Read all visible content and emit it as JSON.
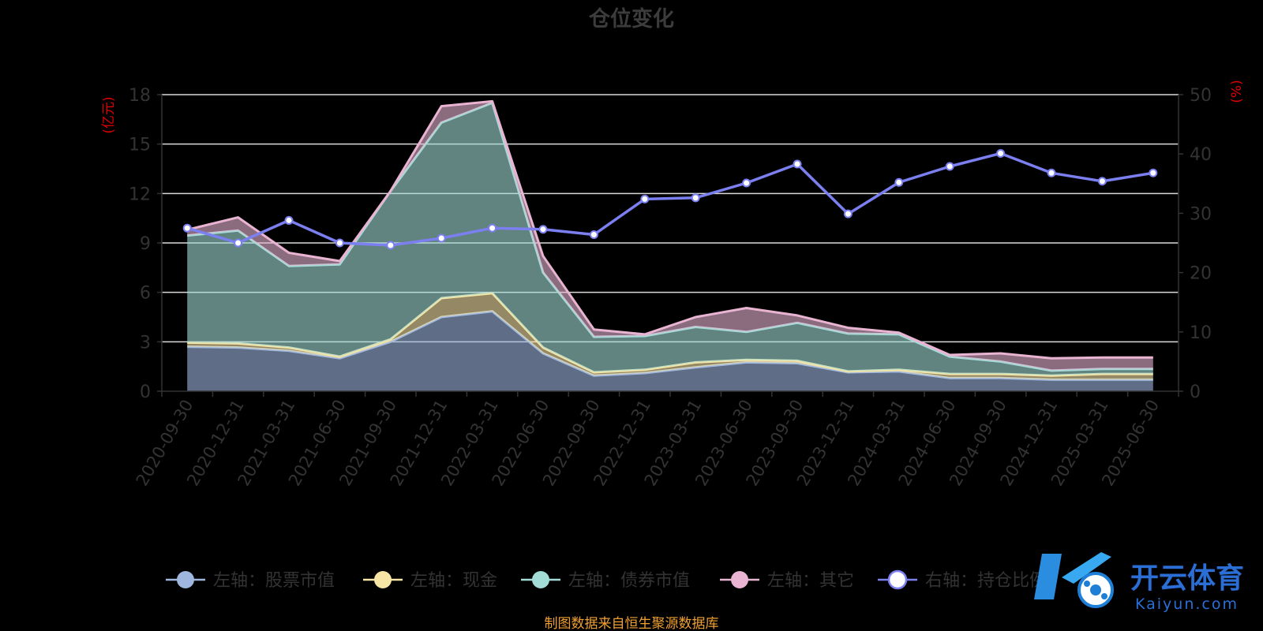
{
  "chart_data": {
    "type": "area",
    "title": "仓位变化",
    "left_unit": "(亿元)",
    "right_unit": "(%)",
    "categories": [
      "2020-09-30",
      "2020-12-31",
      "2021-03-31",
      "2021-06-30",
      "2021-09-30",
      "2021-12-31",
      "2022-03-31",
      "2022-06-30",
      "2022-09-30",
      "2022-12-31",
      "2023-03-31",
      "2023-06-30",
      "2023-09-30",
      "2023-12-31",
      "2024-03-31",
      "2024-06-30",
      "2024-09-30",
      "2024-12-31",
      "2025-03-31",
      "2025-06-30"
    ],
    "left_axis": {
      "min": 0,
      "max": 18,
      "ticks": [
        0,
        3,
        6,
        9,
        12,
        15,
        18
      ]
    },
    "right_axis": {
      "min": 0,
      "max": 50,
      "ticks": [
        0,
        10,
        20,
        30,
        40,
        50
      ]
    },
    "stacked_series": [
      {
        "name": "左轴：股票市值",
        "color": "#9fb7df",
        "values": [
          2.7,
          2.65,
          2.45,
          2.0,
          3.0,
          4.5,
          4.85,
          2.3,
          0.95,
          1.1,
          1.45,
          1.75,
          1.7,
          1.15,
          1.2,
          0.8,
          0.8,
          0.7,
          0.7,
          0.7
        ]
      },
      {
        "name": "左轴：现金",
        "color": "#f7e5a6",
        "values": [
          0.25,
          0.25,
          0.2,
          0.1,
          0.15,
          1.15,
          1.1,
          0.35,
          0.2,
          0.2,
          0.3,
          0.15,
          0.15,
          0.05,
          0.1,
          0.25,
          0.25,
          0.25,
          0.35,
          0.35
        ]
      },
      {
        "name": "左轴：债券市值",
        "color": "#a3dcd6",
        "values": [
          6.5,
          6.85,
          4.95,
          5.6,
          9.0,
          10.65,
          11.55,
          4.55,
          2.15,
          2.05,
          2.15,
          1.7,
          2.3,
          2.3,
          2.15,
          1.05,
          0.75,
          0.3,
          0.3,
          0.3
        ]
      },
      {
        "name": "左轴：其它",
        "color": "#e8b4d2",
        "values": [
          0.35,
          0.8,
          0.8,
          0.2,
          0.0,
          1.0,
          0.1,
          1.0,
          0.45,
          0.1,
          0.6,
          1.45,
          0.45,
          0.35,
          0.1,
          0.1,
          0.5,
          0.75,
          0.7,
          0.7
        ]
      }
    ],
    "line_series": {
      "name": "右轴：持仓比例",
      "color": "#7b7ff0",
      "marker_color": "#ffffff",
      "values": [
        27.5,
        25.0,
        28.8,
        25.0,
        24.6,
        25.8,
        27.5,
        27.3,
        26.4,
        32.4,
        32.6,
        35.1,
        38.3,
        29.9,
        35.2,
        37.9,
        40.1,
        36.8,
        35.4,
        36.8
      ]
    },
    "legend_position": "bottom",
    "grid": true
  },
  "source_note": "制图数据来自恒生聚源数据库",
  "watermark": {
    "cn": "开云体育",
    "en": "Kaiyun.com"
  }
}
